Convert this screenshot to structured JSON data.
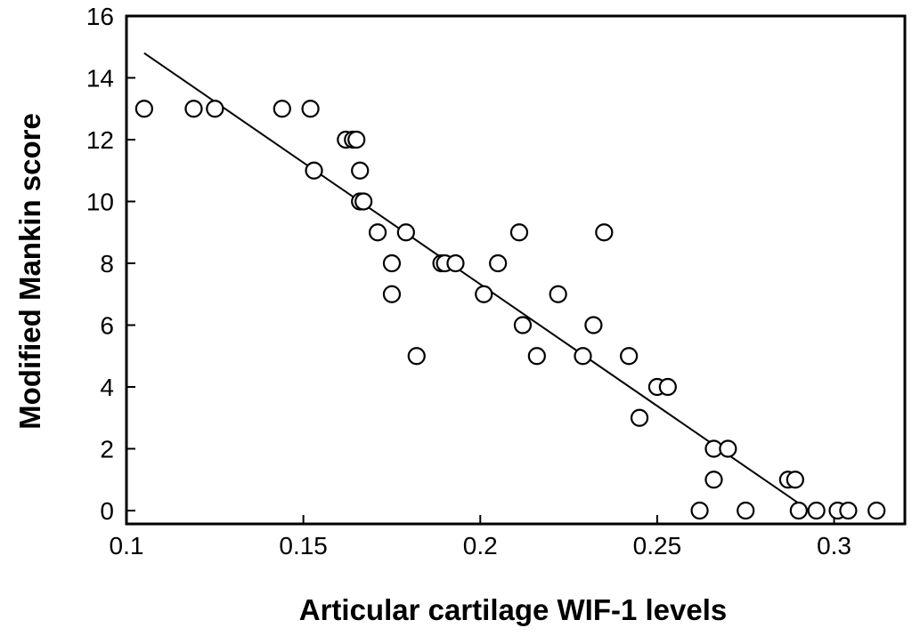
{
  "chart_data": {
    "type": "scatter",
    "xlabel": "Articular cartilage WIF-1 levels",
    "ylabel": "Modified Mankin score",
    "xlim": [
      0.1,
      0.32
    ],
    "ylim": [
      0,
      16
    ],
    "xticks": [
      0.1,
      0.15,
      0.2,
      0.25,
      0.3
    ],
    "yticks": [
      0,
      2,
      4,
      6,
      8,
      10,
      12,
      14,
      16
    ],
    "xtick_labels": [
      "0.1",
      "0.15",
      "0.2",
      "0.25",
      "0.3"
    ],
    "ytick_labels": [
      "0",
      "2",
      "4",
      "6",
      "8",
      "10",
      "12",
      "14",
      "16"
    ],
    "grid": false,
    "series": [
      {
        "marker": "open-circle",
        "color": "#000000",
        "points": [
          [
            0.105,
            13
          ],
          [
            0.119,
            13
          ],
          [
            0.125,
            13
          ],
          [
            0.144,
            13
          ],
          [
            0.152,
            13
          ],
          [
            0.153,
            11
          ],
          [
            0.162,
            12
          ],
          [
            0.164,
            12
          ],
          [
            0.165,
            12
          ],
          [
            0.166,
            11
          ],
          [
            0.166,
            10
          ],
          [
            0.167,
            10
          ],
          [
            0.171,
            9
          ],
          [
            0.175,
            8
          ],
          [
            0.175,
            7
          ],
          [
            0.179,
            9
          ],
          [
            0.182,
            5
          ],
          [
            0.189,
            8
          ],
          [
            0.19,
            8
          ],
          [
            0.193,
            8
          ],
          [
            0.201,
            7
          ],
          [
            0.205,
            8
          ],
          [
            0.211,
            9
          ],
          [
            0.212,
            6
          ],
          [
            0.216,
            5
          ],
          [
            0.222,
            7
          ],
          [
            0.229,
            5
          ],
          [
            0.232,
            6
          ],
          [
            0.235,
            9
          ],
          [
            0.242,
            5
          ],
          [
            0.245,
            3
          ],
          [
            0.25,
            4
          ],
          [
            0.253,
            4
          ],
          [
            0.262,
            0
          ],
          [
            0.266,
            2
          ],
          [
            0.266,
            1
          ],
          [
            0.27,
            2
          ],
          [
            0.275,
            0
          ],
          [
            0.287,
            1
          ],
          [
            0.289,
            1
          ],
          [
            0.29,
            0
          ],
          [
            0.295,
            0
          ],
          [
            0.301,
            0
          ],
          [
            0.304,
            0
          ],
          [
            0.312,
            0
          ]
        ]
      }
    ],
    "trend_line": {
      "type": "linear",
      "from": [
        0.105,
        14.8
      ],
      "to": [
        0.293,
        0
      ]
    }
  }
}
